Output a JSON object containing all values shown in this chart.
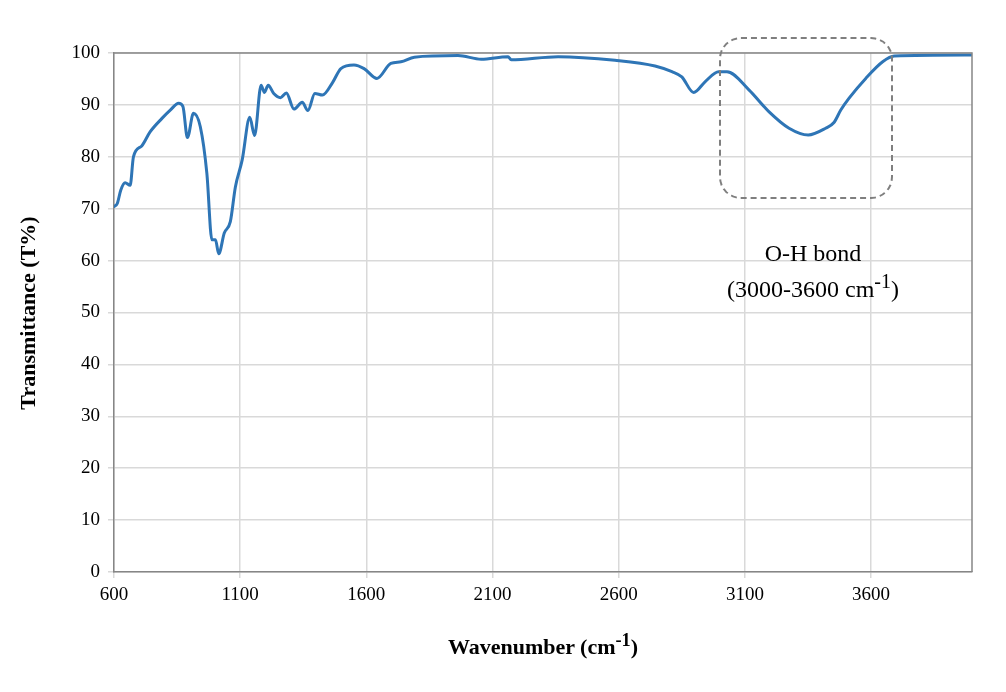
{
  "chart_data": {
    "type": "line",
    "xlabel": "Wavenumber (cm$^{-1}$)",
    "ylabel": "Transmittance (T%)",
    "annotations": [
      "O-H bond",
      "(3000-3600 cm$^{-1}$)"
    ],
    "xlim": [
      600,
      4000
    ],
    "xticks": [
      600,
      1100,
      1600,
      2100,
      2600,
      3100,
      3600
    ],
    "ylim": [
      0,
      100
    ],
    "yticks": [
      0,
      10,
      20,
      30,
      40,
      50,
      60,
      70,
      80,
      90,
      100
    ],
    "grid": true,
    "legend": false,
    "marker": "none",
    "line_style": "solid",
    "series": [
      {
        "color": "#2e75b6",
        "x": [
          600,
          613,
          627,
          644,
          664,
          677,
          710,
          743,
          790,
          823,
          856,
          873,
          891,
          915,
          942,
          968,
          988,
          1002,
          1015,
          1037,
          1061,
          1081,
          1108,
          1138,
          1157,
          1183,
          1196,
          1211,
          1233,
          1260,
          1283,
          1313,
          1346,
          1368,
          1396,
          1426,
          1466,
          1499,
          1551,
          1591,
          1642,
          1697,
          1737,
          1790,
          1963,
          2055,
          2161,
          2174,
          2360,
          2585,
          2744,
          2811,
          2850,
          2897,
          2943,
          2996,
          3029,
          3116,
          3195,
          3275,
          3351,
          3420,
          3453,
          3480,
          3513,
          3579,
          3646,
          3692,
          4000
        ],
        "values": [
          70.4,
          71.0,
          73.6,
          75.0,
          74.5,
          80.0,
          82.1,
          84.8,
          87.4,
          89.0,
          90.3,
          89.7,
          83.7,
          88.4,
          85.8,
          76.8,
          64.0,
          64.0,
          61.3,
          65.3,
          67.5,
          74.2,
          79.4,
          87.6,
          84.1,
          93.8,
          92.4,
          93.8,
          92.2,
          91.4,
          92.3,
          89.2,
          90.5,
          88.9,
          92.2,
          91.9,
          94.3,
          97.0,
          97.7,
          97.0,
          95.1,
          98.0,
          98.3,
          99.2,
          99.5,
          98.8,
          99.3,
          98.7,
          99.3,
          98.6,
          97.5,
          96.4,
          95.4,
          92.4,
          94.5,
          96.4,
          96.4,
          92.9,
          88.7,
          85.5,
          84.2,
          85.5,
          86.6,
          89.0,
          91.3,
          95.1,
          98.3,
          99.4,
          99.6
        ]
      }
    ]
  }
}
